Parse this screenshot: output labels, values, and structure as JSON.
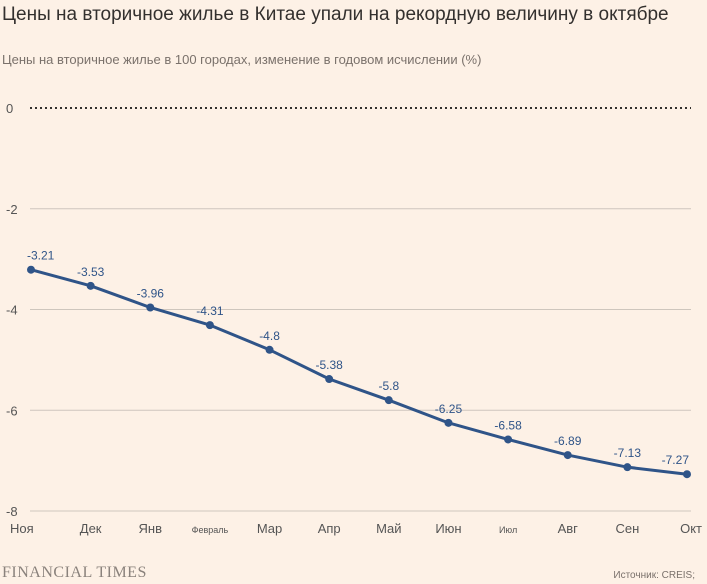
{
  "header": {
    "title": "Цены на вторичное жилье в Китае упали на рекордную величину в октябре",
    "subtitle": "Цены на вторичное жилье в 100 городах, изменение в годовом исчислении (%)"
  },
  "footer": {
    "brand": "FINANCIAL TIMES",
    "source": "Источник: CREIS;"
  },
  "colors": {
    "series": "#2f5488",
    "background": "#fdf1e6"
  },
  "chart_data": {
    "type": "line",
    "title": "Цены на вторичное жилье в Китае упали на рекордную величину в октябре",
    "ylabel": "",
    "xlabel": "",
    "ylim": [
      -8,
      0
    ],
    "yticks": [
      0,
      -2,
      -4,
      -6,
      -8
    ],
    "ytick_labels": [
      "0",
      "-2",
      "-4",
      "-6",
      "-8"
    ],
    "categories": [
      "Ноя",
      "Дек",
      "Янв",
      "Февраль",
      "Мар",
      "Апр",
      "Май",
      "Июн",
      "Июл",
      "Авг",
      "Сен",
      "Окт"
    ],
    "small_labels": [
      "Февраль",
      "Июл"
    ],
    "series": [
      {
        "name": "Цены на вторичное жилье",
        "values": [
          -3.21,
          -3.53,
          -3.96,
          -4.31,
          -4.8,
          -5.38,
          -5.8,
          -6.25,
          -6.58,
          -6.89,
          -7.13,
          -7.27
        ],
        "labels": [
          "-3.21",
          "-3.53",
          "-3.96",
          "-4.31",
          "-4.8",
          "-5.38",
          "-5.8",
          "-6.25",
          "-6.58",
          "-6.89",
          "-7.13",
          "-7.27"
        ]
      }
    ]
  }
}
